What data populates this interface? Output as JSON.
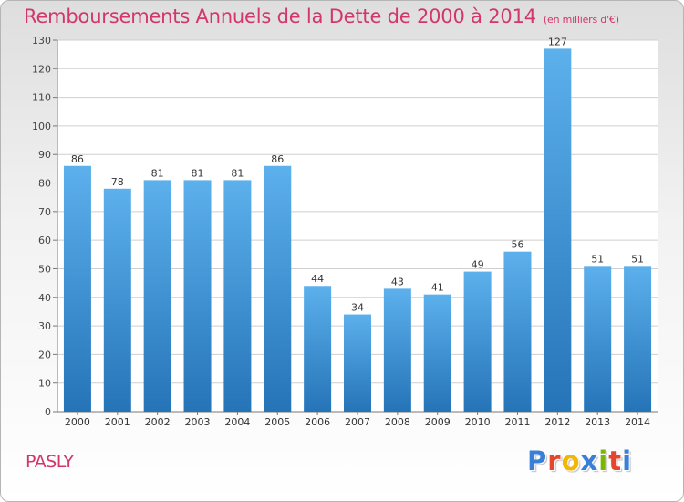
{
  "header": {
    "title": "Remboursements Annuels de la Dette de 2000 à 2014",
    "subtitle": "(en milliers d'€)"
  },
  "footer": {
    "place": "PASLY",
    "logo": {
      "letters": [
        "P",
        "r",
        "o",
        "x",
        "i",
        "t",
        "i"
      ],
      "colors": [
        "#3a7fd6",
        "#e4462e",
        "#f2b705",
        "#3a7fd6",
        "#7ab800",
        "#e4462e",
        "#3a7fd6"
      ]
    }
  },
  "colors": {
    "bar_light": "#5cb0ec",
    "bar_dark": "#2574b8",
    "title": "#d3366b",
    "grid": "#cfcfcf"
  },
  "chart_data": {
    "type": "bar",
    "title": "Remboursements Annuels de la Dette de 2000 à 2014",
    "subtitle": "(en milliers d'€)",
    "categories": [
      "2000",
      "2001",
      "2002",
      "2003",
      "2004",
      "2005",
      "2006",
      "2007",
      "2008",
      "2009",
      "2010",
      "2011",
      "2012",
      "2013",
      "2014"
    ],
    "values": [
      86,
      78,
      81,
      81,
      81,
      86,
      44,
      34,
      43,
      41,
      49,
      56,
      127,
      51,
      51
    ],
    "ylim": [
      0,
      130
    ],
    "yticks": [
      0,
      10,
      20,
      30,
      40,
      50,
      60,
      70,
      80,
      90,
      100,
      110,
      120,
      130
    ],
    "grid": true,
    "data_labels": true
  }
}
